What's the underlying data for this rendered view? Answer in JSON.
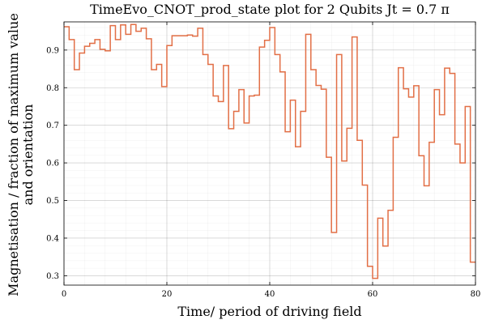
{
  "chart_data": {
    "type": "line",
    "step": true,
    "title": "TimeEvo_CNOT_prod_state plot for 2 Qubits Jt = 0.7 π",
    "xlabel": "Time/ period of driving field",
    "ylabel_lines": [
      "Magnetisation / fraction of maximum value",
      "and orientation"
    ],
    "xlim": [
      0,
      80
    ],
    "ylim": [
      0.275,
      0.975
    ],
    "xticks": [
      0,
      20,
      40,
      60,
      80
    ],
    "xtick_labels": [
      "0",
      "20",
      "40",
      "60",
      "80"
    ],
    "yticks": [
      0.3,
      0.4,
      0.5,
      0.6,
      0.7,
      0.8,
      0.9
    ],
    "ytick_labels": [
      "0.3",
      "0.4",
      "0.5",
      "0.6",
      "0.7",
      "0.8",
      "0.9"
    ],
    "grid": true,
    "minor_grid": true,
    "legend": false,
    "series": [
      {
        "color": "#e26f46",
        "y": [
          0.962,
          0.928,
          0.848,
          0.892,
          0.91,
          0.918,
          0.928,
          0.902,
          0.898,
          0.965,
          0.928,
          0.967,
          0.942,
          0.968,
          0.95,
          0.958,
          0.93,
          0.848,
          0.862,
          0.803,
          0.912,
          0.938,
          0.938,
          0.938,
          0.94,
          0.937,
          0.958,
          0.888,
          0.862,
          0.778,
          0.763,
          0.859,
          0.691,
          0.737,
          0.795,
          0.706,
          0.778,
          0.78,
          0.908,
          0.926,
          0.96,
          0.888,
          0.842,
          0.683,
          0.767,
          0.643,
          0.737,
          0.942,
          0.848,
          0.806,
          0.796,
          0.615,
          0.415,
          0.888,
          0.605,
          0.692,
          0.935,
          0.66,
          0.541,
          0.325,
          0.293,
          0.453,
          0.379,
          0.474,
          0.668,
          0.853,
          0.797,
          0.775,
          0.805,
          0.619,
          0.539,
          0.655,
          0.795,
          0.728,
          0.852,
          0.838,
          0.65,
          0.6,
          0.75,
          0.336
        ]
      }
    ]
  }
}
